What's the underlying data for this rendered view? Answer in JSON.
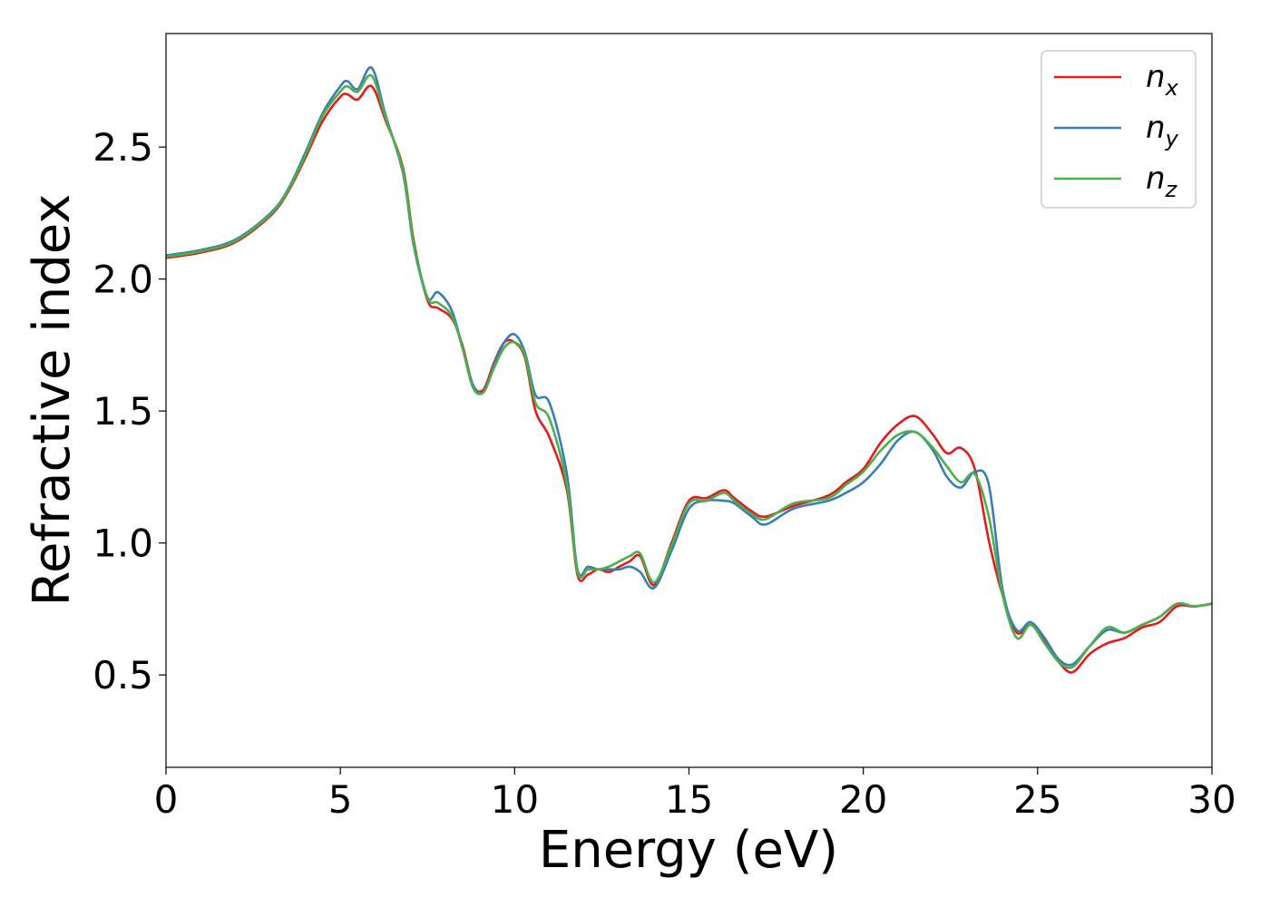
{
  "chart_data": {
    "type": "line",
    "xlabel": "Energy (eV)",
    "ylabel": "Refractive index",
    "xlim": [
      0,
      30
    ],
    "ylim": [
      0.15,
      2.93
    ],
    "xticks": [
      0,
      5,
      10,
      15,
      20,
      25,
      30
    ],
    "xtick_labels": [
      "0",
      "5",
      "10",
      "15",
      "20",
      "25",
      "30"
    ],
    "yticks": [
      0.5,
      1.0,
      1.5,
      2.0,
      2.5
    ],
    "ytick_labels": [
      "0.5",
      "1.0",
      "1.5",
      "2.0",
      "2.5"
    ],
    "grid": false,
    "legend_position": "top-right",
    "series": [
      {
        "name": "n_x",
        "label_base": "n",
        "label_sub": "x",
        "color": "#e41a1c",
        "x": [
          0,
          1,
          2,
          3,
          3.5,
          4,
          4.5,
          5,
          5.2,
          5.5,
          5.9,
          6.3,
          6.8,
          7.1,
          7.5,
          7.8,
          8.2,
          8.5,
          8.8,
          9.1,
          9.4,
          9.7,
          10.0,
          10.3,
          10.6,
          11.0,
          11.5,
          11.8,
          12.1,
          12.4,
          12.7,
          13.0,
          13.3,
          13.6,
          14.0,
          14.5,
          15.0,
          15.5,
          16.0,
          16.3,
          16.8,
          17.2,
          18.0,
          19.0,
          19.5,
          20.0,
          20.5,
          21.0,
          21.5,
          22.0,
          22.4,
          22.8,
          23.2,
          23.6,
          24.0,
          24.4,
          24.8,
          25.2,
          25.6,
          26.0,
          26.5,
          27.0,
          27.5,
          28.0,
          28.5,
          29.0,
          29.5,
          30.0
        ],
        "y": [
          2.08,
          2.1,
          2.14,
          2.24,
          2.33,
          2.46,
          2.6,
          2.69,
          2.7,
          2.68,
          2.73,
          2.6,
          2.42,
          2.15,
          1.92,
          1.89,
          1.85,
          1.75,
          1.6,
          1.58,
          1.68,
          1.76,
          1.76,
          1.7,
          1.5,
          1.4,
          1.2,
          0.88,
          0.88,
          0.9,
          0.89,
          0.91,
          0.93,
          0.95,
          0.84,
          1.0,
          1.16,
          1.17,
          1.2,
          1.17,
          1.12,
          1.1,
          1.14,
          1.18,
          1.23,
          1.28,
          1.38,
          1.45,
          1.48,
          1.41,
          1.34,
          1.36,
          1.28,
          1.01,
          0.8,
          0.66,
          0.69,
          0.63,
          0.55,
          0.51,
          0.58,
          0.62,
          0.64,
          0.68,
          0.7,
          0.76,
          0.76,
          0.77
        ]
      },
      {
        "name": "n_y",
        "label_base": "n",
        "label_sub": "y",
        "color": "#377eb8",
        "x": [
          0,
          1,
          2,
          3,
          3.5,
          4,
          4.5,
          5,
          5.2,
          5.5,
          5.9,
          6.3,
          6.8,
          7.1,
          7.5,
          7.8,
          8.2,
          8.5,
          8.8,
          9.1,
          9.4,
          9.7,
          10.0,
          10.3,
          10.6,
          11.0,
          11.5,
          11.8,
          12.1,
          12.4,
          12.7,
          13.0,
          13.3,
          13.6,
          14.0,
          14.5,
          15.0,
          15.5,
          16.0,
          16.3,
          16.8,
          17.2,
          18.0,
          19.0,
          19.5,
          20.0,
          20.5,
          21.0,
          21.5,
          22.0,
          22.4,
          22.8,
          23.2,
          23.6,
          24.0,
          24.4,
          24.8,
          25.2,
          25.6,
          26.0,
          26.5,
          27.0,
          27.5,
          28.0,
          28.5,
          29.0,
          29.5,
          30.0
        ],
        "y": [
          2.09,
          2.11,
          2.15,
          2.25,
          2.34,
          2.48,
          2.63,
          2.73,
          2.75,
          2.72,
          2.8,
          2.62,
          2.4,
          2.13,
          1.93,
          1.95,
          1.88,
          1.74,
          1.6,
          1.57,
          1.67,
          1.76,
          1.79,
          1.72,
          1.56,
          1.53,
          1.26,
          0.9,
          0.91,
          0.9,
          0.9,
          0.9,
          0.91,
          0.89,
          0.83,
          0.97,
          1.13,
          1.16,
          1.16,
          1.15,
          1.1,
          1.07,
          1.13,
          1.16,
          1.19,
          1.23,
          1.3,
          1.39,
          1.42,
          1.35,
          1.25,
          1.21,
          1.27,
          1.22,
          0.82,
          0.67,
          0.7,
          0.64,
          0.56,
          0.54,
          0.61,
          0.67,
          0.66,
          0.69,
          0.72,
          0.77,
          0.76,
          0.77
        ]
      },
      {
        "name": "n_z",
        "label_base": "n",
        "label_sub": "z",
        "color": "#4daf4a",
        "x": [
          0,
          1,
          2,
          3,
          3.5,
          4,
          4.5,
          5,
          5.2,
          5.5,
          5.9,
          6.3,
          6.8,
          7.1,
          7.5,
          7.8,
          8.2,
          8.5,
          8.8,
          9.1,
          9.4,
          9.7,
          10.0,
          10.3,
          10.6,
          11.0,
          11.5,
          11.8,
          12.1,
          12.4,
          12.7,
          13.0,
          13.3,
          13.6,
          14.0,
          14.5,
          15.0,
          15.5,
          16.0,
          16.3,
          16.8,
          17.2,
          18.0,
          19.0,
          19.5,
          20.0,
          20.5,
          21.0,
          21.5,
          22.0,
          22.4,
          22.8,
          23.2,
          23.6,
          24.0,
          24.4,
          24.8,
          25.2,
          25.6,
          26.0,
          26.5,
          27.0,
          27.5,
          28.0,
          28.5,
          29.0,
          29.5,
          30.0
        ],
        "y": [
          2.085,
          2.105,
          2.145,
          2.245,
          2.335,
          2.47,
          2.62,
          2.71,
          2.73,
          2.71,
          2.77,
          2.61,
          2.41,
          2.14,
          1.93,
          1.91,
          1.86,
          1.74,
          1.59,
          1.57,
          1.66,
          1.74,
          1.76,
          1.71,
          1.53,
          1.47,
          1.22,
          0.89,
          0.9,
          0.9,
          0.91,
          0.93,
          0.95,
          0.96,
          0.85,
          0.99,
          1.15,
          1.16,
          1.19,
          1.16,
          1.11,
          1.09,
          1.15,
          1.17,
          1.22,
          1.27,
          1.35,
          1.41,
          1.42,
          1.36,
          1.29,
          1.23,
          1.26,
          1.1,
          0.8,
          0.64,
          0.69,
          0.62,
          0.55,
          0.53,
          0.61,
          0.68,
          0.66,
          0.69,
          0.72,
          0.77,
          0.76,
          0.77
        ]
      }
    ]
  }
}
